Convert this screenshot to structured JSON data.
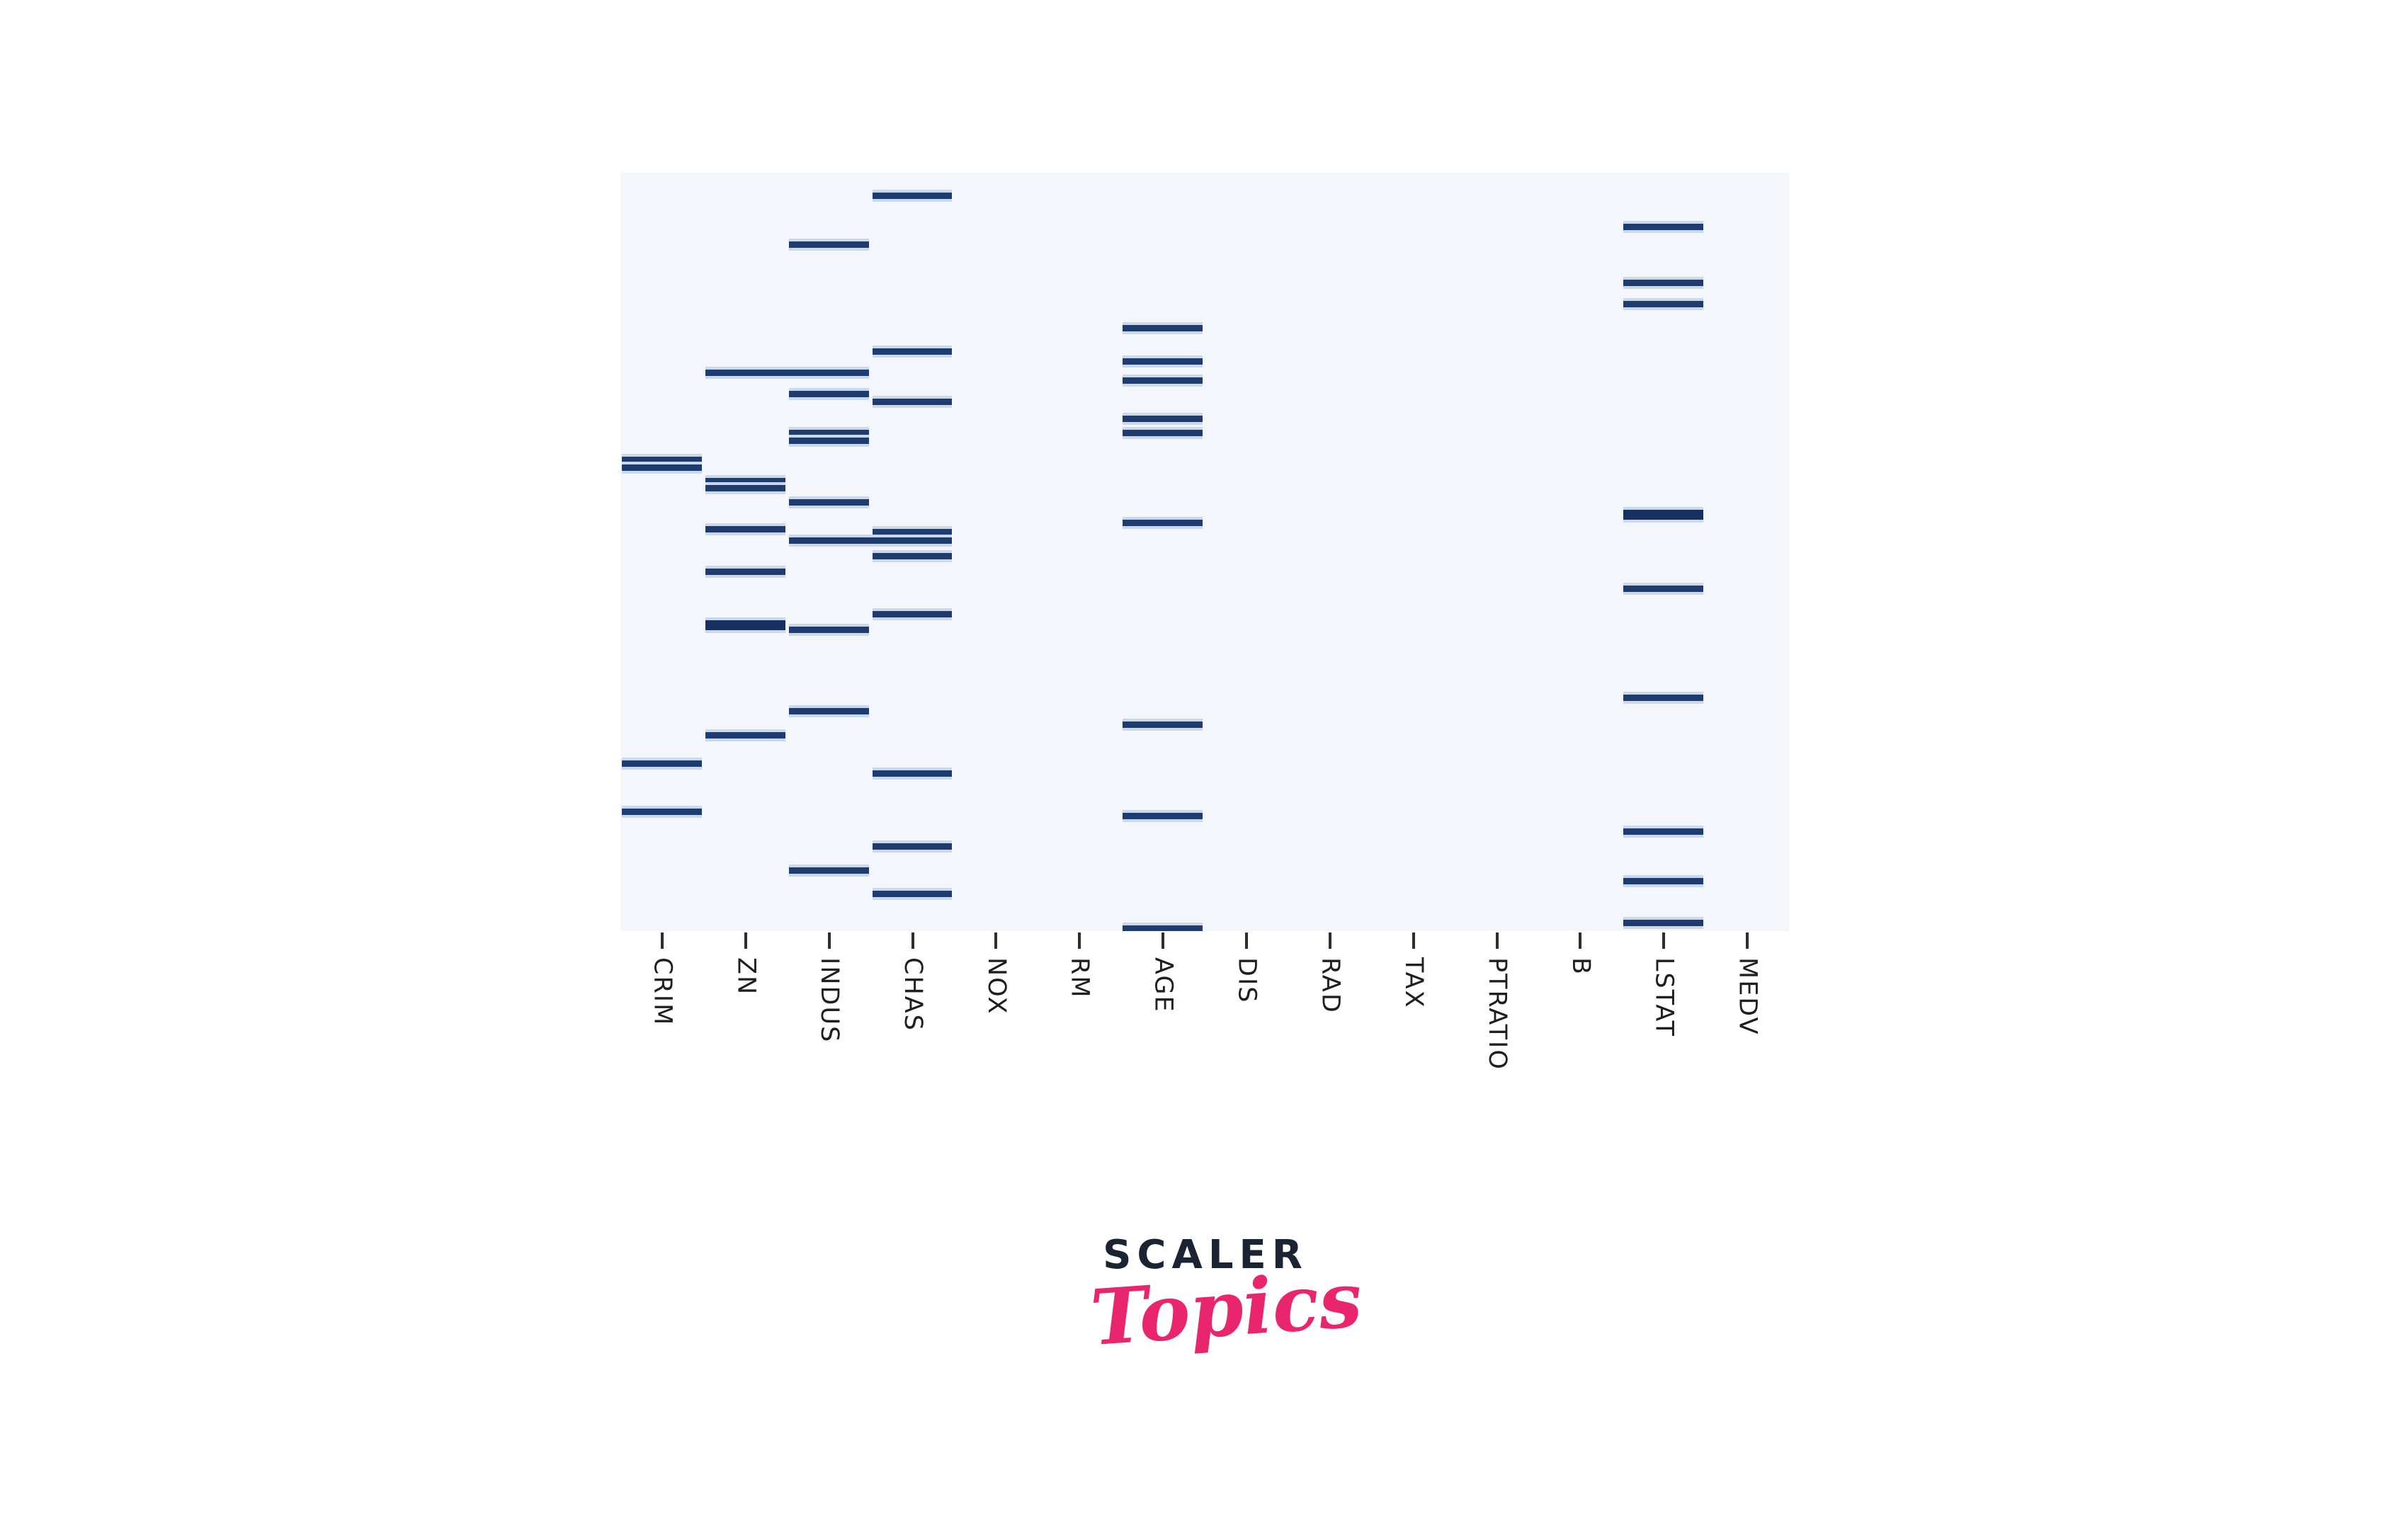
{
  "page": {
    "background": "#ffffff"
  },
  "chart_data": {
    "type": "heatmap",
    "subtype": "missing-values-matrix",
    "title": "",
    "xlabel": "",
    "ylabel": "",
    "grid": false,
    "legend": "none",
    "plot_bg_color": "#f3f7fb",
    "mark_color": "#1e3c6f",
    "mark_bold_color": "#16305f",
    "mark_halo_color": "#cbd8ea",
    "tick_color": "#2e2e2e",
    "label_color": "#1f1f1f",
    "x_tick_label_rotation_deg": 90,
    "columns": [
      "CRIM",
      "ZN",
      "INDUS",
      "CHAS",
      "NOX",
      "RM",
      "AGE",
      "DIS",
      "RAD",
      "TAX",
      "PTRATIO",
      "B",
      "LSTAT",
      "MEDV"
    ],
    "y_axis_visible": false,
    "marks": [
      {
        "col": "CHAS",
        "y": 0.03
      },
      {
        "col": "LSTAT",
        "y": 0.071
      },
      {
        "col": "INDUS",
        "y": 0.095
      },
      {
        "col": "LSTAT",
        "y": 0.145
      },
      {
        "col": "LSTAT",
        "y": 0.173
      },
      {
        "col": "AGE",
        "y": 0.205
      },
      {
        "col": "CHAS",
        "y": 0.236
      },
      {
        "col": "AGE",
        "y": 0.249
      },
      {
        "col": "ZN",
        "y": 0.264,
        "span": 2
      },
      {
        "col": "AGE",
        "y": 0.274
      },
      {
        "col": "INDUS",
        "y": 0.292
      },
      {
        "col": "CHAS",
        "y": 0.302
      },
      {
        "col": "AGE",
        "y": 0.324
      },
      {
        "col": "AGE",
        "y": 0.343
      },
      {
        "col": "INDUS",
        "y": 0.343
      },
      {
        "col": "INDUS",
        "y": 0.353
      },
      {
        "col": "CRIM",
        "y": 0.379
      },
      {
        "col": "CRIM",
        "y": 0.389
      },
      {
        "col": "ZN",
        "y": 0.407
      },
      {
        "col": "ZN",
        "y": 0.416
      },
      {
        "col": "INDUS",
        "y": 0.435
      },
      {
        "col": "LSTAT",
        "y": 0.451,
        "bold": true
      },
      {
        "col": "AGE",
        "y": 0.462
      },
      {
        "col": "ZN",
        "y": 0.47
      },
      {
        "col": "CHAS",
        "y": 0.474
      },
      {
        "col": "INDUS",
        "y": 0.485,
        "span": 2
      },
      {
        "col": "CHAS",
        "y": 0.506
      },
      {
        "col": "ZN",
        "y": 0.526
      },
      {
        "col": "LSTAT",
        "y": 0.549
      },
      {
        "col": "CHAS",
        "y": 0.582
      },
      {
        "col": "ZN",
        "y": 0.597,
        "bold": true
      },
      {
        "col": "INDUS",
        "y": 0.603
      },
      {
        "col": "LSTAT",
        "y": 0.692
      },
      {
        "col": "INDUS",
        "y": 0.71
      },
      {
        "col": "AGE",
        "y": 0.728
      },
      {
        "col": "ZN",
        "y": 0.742
      },
      {
        "col": "CRIM",
        "y": 0.779
      },
      {
        "col": "CHAS",
        "y": 0.792
      },
      {
        "col": "CRIM",
        "y": 0.843
      },
      {
        "col": "AGE",
        "y": 0.848
      },
      {
        "col": "LSTAT",
        "y": 0.869
      },
      {
        "col": "CHAS",
        "y": 0.888
      },
      {
        "col": "INDUS",
        "y": 0.92
      },
      {
        "col": "LSTAT",
        "y": 0.934
      },
      {
        "col": "CHAS",
        "y": 0.951
      },
      {
        "col": "LSTAT",
        "y": 0.989
      },
      {
        "col": "AGE",
        "y": 0.997
      }
    ]
  },
  "branding": {
    "name": "SCALER",
    "sub": "Topics",
    "name_color": "#1b2433",
    "sub_color": "#e9256d"
  }
}
